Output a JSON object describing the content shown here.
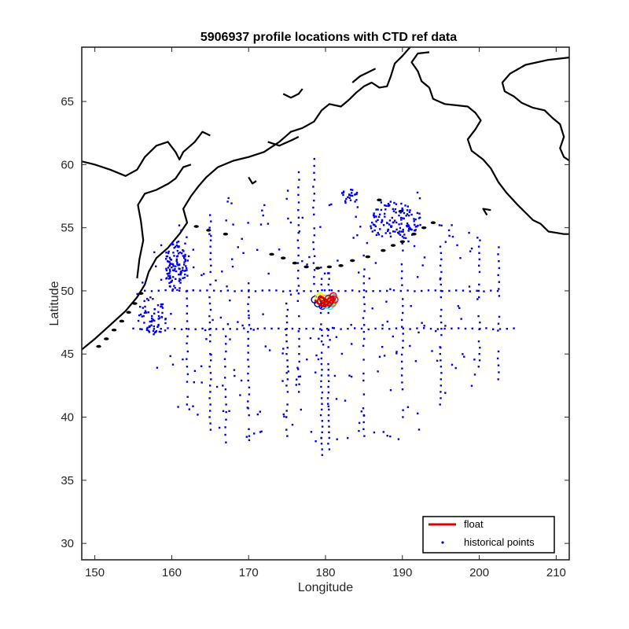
{
  "chart_data": {
    "type": "scatter",
    "title": "5906937 profile locations with CTD ref data",
    "xlabel": "Longitude",
    "ylabel": "Latitude",
    "xlim": [
      148.3,
      211.7
    ],
    "ylim": [
      28.7,
      69.3
    ],
    "xticks": [
      150,
      160,
      170,
      180,
      190,
      200,
      210
    ],
    "yticks": [
      30,
      35,
      40,
      45,
      50,
      55,
      60,
      65
    ],
    "grid": false,
    "legend_position": "bottom-right",
    "legend": [
      {
        "label": "float",
        "color": "#e00000",
        "marker": "line"
      },
      {
        "label": "historical points",
        "color": "#0000ee",
        "marker": "dot"
      }
    ],
    "float_track": {
      "name": "float",
      "color": "#e00000",
      "x": [
        178.6,
        179.0,
        179.6,
        180.2,
        180.6,
        180.9,
        181.0,
        180.6,
        180.0,
        179.4,
        179.1,
        179.3,
        179.9,
        180.5,
        180.9,
        181.2,
        181.0,
        180.4,
        179.8,
        179.4
      ],
      "y": [
        49.3,
        49.0,
        48.8,
        48.9,
        49.2,
        49.5,
        49.1,
        48.8,
        48.9,
        49.2,
        49.5,
        49.6,
        49.4,
        49.1,
        49.0,
        49.3,
        49.6,
        49.4,
        49.0,
        49.2
      ],
      "profile_colors": [
        "#00008f",
        "#0000ff",
        "#0060ff",
        "#00bfff",
        "#20ffdf",
        "#80ff80",
        "#dfff20",
        "#ffbf00",
        "#ff6000",
        "#ff0000",
        "#c00000",
        "#800000"
      ]
    },
    "historical_points": {
      "name": "historical points",
      "color": "#0000ee",
      "note_series": [
        {
          "kind": "line_lat",
          "lat": 50.0,
          "lon_start": 156.5,
          "lon_end": 203.0,
          "step": 0.9
        },
        {
          "kind": "line_lat",
          "lat": 47.0,
          "lon_start": 155.0,
          "lon_end": 205.0,
          "step": 0.9
        },
        {
          "kind": "line_lon",
          "lon": 179.5,
          "lat_start": 37.0,
          "lat_end": 52.0,
          "step": 0.45
        },
        {
          "kind": "line_lon",
          "lon": 180.4,
          "lat_start": 37.0,
          "lat_end": 51.5,
          "step": 0.45
        },
        {
          "kind": "line_lon",
          "lon": 175.0,
          "lat_start": 38.5,
          "lat_end": 49.0,
          "step": 0.5
        },
        {
          "kind": "line_lon",
          "lon": 165.0,
          "lat_start": 39.0,
          "lat_end": 56.0,
          "step": 0.5
        },
        {
          "kind": "line_lon",
          "lon": 170.0,
          "lat_start": 38.5,
          "lat_end": 51.0,
          "step": 0.55
        },
        {
          "kind": "line_lon",
          "lon": 185.0,
          "lat_start": 38.5,
          "lat_end": 53.0,
          "step": 0.55
        },
        {
          "kind": "line_lon",
          "lon": 190.0,
          "lat_start": 40.0,
          "lat_end": 55.0,
          "step": 0.55
        },
        {
          "kind": "line_lon",
          "lon": 195.0,
          "lat_start": 41.0,
          "lat_end": 53.5,
          "step": 0.5
        },
        {
          "kind": "line_lon",
          "lon": 200.0,
          "lat_start": 44.0,
          "lat_end": 54.0,
          "step": 0.5
        },
        {
          "kind": "line_lon",
          "lon": 202.5,
          "lat_start": 43.0,
          "lat_end": 54.0,
          "step": 0.55
        },
        {
          "kind": "line_lon",
          "lon": 162.0,
          "lat_start": 41.0,
          "lat_end": 53.0,
          "step": 0.6
        },
        {
          "kind": "line_lon",
          "lon": 167.0,
          "lat_start": 38.0,
          "lat_end": 46.5,
          "step": 0.6
        },
        {
          "kind": "line_lon",
          "lon": 176.5,
          "lat_start": 42.0,
          "lat_end": 60.0,
          "step": 0.6
        },
        {
          "kind": "line_lon",
          "lon": 178.5,
          "lat_start": 50.0,
          "lat_end": 61.0,
          "step": 0.55
        },
        {
          "kind": "cluster",
          "lon": 160.5,
          "lat": 52.0,
          "spread_lon": 1.5,
          "spread_lat": 2.0,
          "count": 110
        },
        {
          "kind": "cluster",
          "lon": 189.0,
          "lat": 55.5,
          "spread_lon": 3.5,
          "spread_lat": 1.5,
          "count": 120
        },
        {
          "kind": "cluster",
          "lon": 183.0,
          "lat": 57.5,
          "spread_lon": 1.2,
          "spread_lat": 0.8,
          "count": 25
        },
        {
          "kind": "cluster",
          "lon": 157.5,
          "lat": 48.0,
          "spread_lon": 2.0,
          "spread_lat": 1.5,
          "count": 60
        },
        {
          "kind": "scatter",
          "lon_min": 155,
          "lon_max": 200,
          "lat_min": 38,
          "lat_max": 58,
          "count": 260
        }
      ]
    },
    "coastlines_color": "#000000"
  }
}
